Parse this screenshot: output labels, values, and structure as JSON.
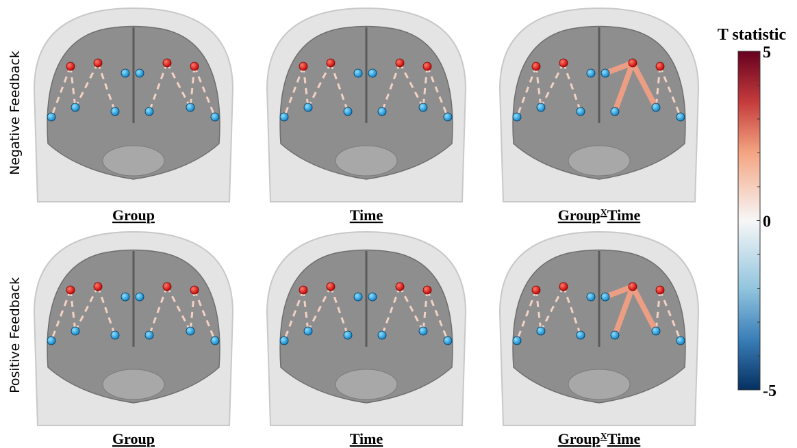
{
  "row_labels": [
    "Negative Feedback",
    "Positive Feedback"
  ],
  "panels": [
    {
      "label": [
        "Group"
      ]
    },
    {
      "label": [
        "Time"
      ]
    },
    {
      "label": [
        "Group",
        "X",
        "Time"
      ]
    },
    {
      "label": [
        "Group"
      ]
    },
    {
      "label": [
        "Time"
      ]
    },
    {
      "label": [
        "Group",
        "X",
        "Time"
      ]
    }
  ],
  "colorbar": {
    "title": "T statistic",
    "lim": [
      -5,
      5
    ],
    "ticks": [
      5,
      0,
      -5
    ]
  }
}
